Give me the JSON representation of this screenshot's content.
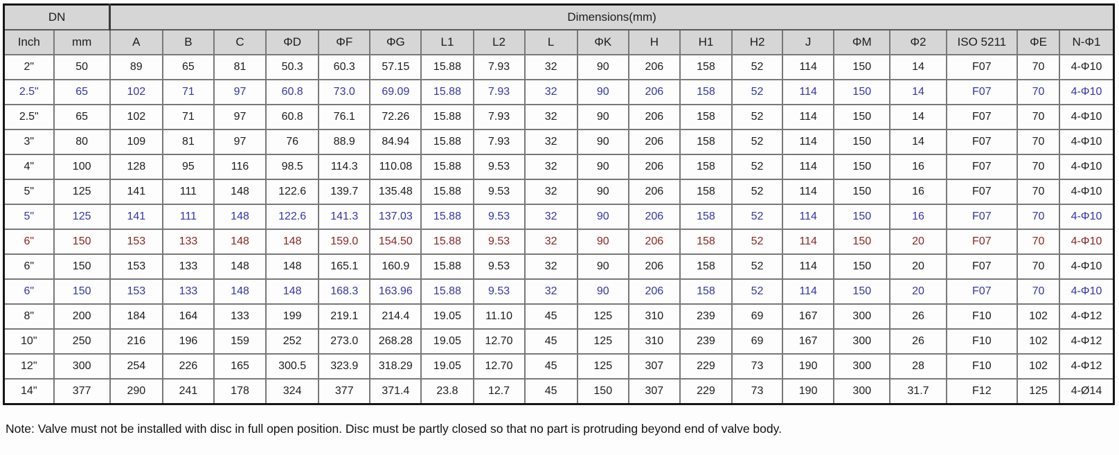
{
  "header": {
    "dn_label": "DN",
    "dimensions_label": "Dimensions(mm)"
  },
  "colors": {
    "black": "#1c1c1c",
    "blue": "#3434a8",
    "red": "#8b2424",
    "header_bg": "#d6d6d6"
  },
  "table": {
    "columns": [
      "Inch",
      "mm",
      "A",
      "B",
      "C",
      "ΦD",
      "ΦF",
      "ΦG",
      "L1",
      "L2",
      "L",
      "ΦK",
      "H",
      "H1",
      "H2",
      "J",
      "ΦM",
      "Φ2",
      "ISO 5211",
      "ΦE",
      "N-Φ1"
    ],
    "rows": [
      {
        "color": "black",
        "cells": [
          "2\"",
          "50",
          "89",
          "65",
          "81",
          "50.3",
          "60.3",
          "57.15",
          "15.88",
          "7.93",
          "32",
          "90",
          "206",
          "158",
          "52",
          "114",
          "150",
          "14",
          "F07",
          "70",
          "4-Φ10"
        ]
      },
      {
        "color": "blue",
        "cells": [
          "2.5\"",
          "65",
          "102",
          "71",
          "97",
          "60.8",
          "73.0",
          "69.09",
          "15.88",
          "7.93",
          "32",
          "90",
          "206",
          "158",
          "52",
          "114",
          "150",
          "14",
          "F07",
          "70",
          "4-Φ10"
        ]
      },
      {
        "color": "black",
        "cells": [
          "2.5\"",
          "65",
          "102",
          "71",
          "97",
          "60.8",
          "76.1",
          "72.26",
          "15.88",
          "7.93",
          "32",
          "90",
          "206",
          "158",
          "52",
          "114",
          "150",
          "14",
          "F07",
          "70",
          "4-Φ10"
        ]
      },
      {
        "color": "black",
        "cells": [
          "3\"",
          "80",
          "109",
          "81",
          "97",
          "76",
          "88.9",
          "84.94",
          "15.88",
          "7.93",
          "32",
          "90",
          "206",
          "158",
          "52",
          "114",
          "150",
          "14",
          "F07",
          "70",
          "4-Φ10"
        ]
      },
      {
        "color": "black",
        "cells": [
          "4\"",
          "100",
          "128",
          "95",
          "116",
          "98.5",
          "114.3",
          "110.08",
          "15.88",
          "9.53",
          "32",
          "90",
          "206",
          "158",
          "52",
          "114",
          "150",
          "16",
          "F07",
          "70",
          "4-Φ10"
        ]
      },
      {
        "color": "black",
        "cells": [
          "5\"",
          "125",
          "141",
          "111",
          "148",
          "122.6",
          "139.7",
          "135.48",
          "15.88",
          "9.53",
          "32",
          "90",
          "206",
          "158",
          "52",
          "114",
          "150",
          "16",
          "F07",
          "70",
          "4-Φ10"
        ]
      },
      {
        "color": "blue",
        "cells": [
          "5\"",
          "125",
          "141",
          "111",
          "148",
          "122.6",
          "141.3",
          "137.03",
          "15.88",
          "9.53",
          "32",
          "90",
          "206",
          "158",
          "52",
          "114",
          "150",
          "16",
          "F07",
          "70",
          "4-Φ10"
        ]
      },
      {
        "color": "red",
        "cells": [
          "6\"",
          "150",
          "153",
          "133",
          "148",
          "148",
          "159.0",
          "154.50",
          "15.88",
          "9.53",
          "32",
          "90",
          "206",
          "158",
          "52",
          "114",
          "150",
          "20",
          "F07",
          "70",
          "4-Φ10"
        ]
      },
      {
        "color": "black",
        "cells": [
          "6\"",
          "150",
          "153",
          "133",
          "148",
          "148",
          "165.1",
          "160.9",
          "15.88",
          "9.53",
          "32",
          "90",
          "206",
          "158",
          "52",
          "114",
          "150",
          "20",
          "F07",
          "70",
          "4-Φ10"
        ]
      },
      {
        "color": "blue",
        "cells": [
          "6\"",
          "150",
          "153",
          "133",
          "148",
          "148",
          "168.3",
          "163.96",
          "15.88",
          "9.53",
          "32",
          "90",
          "206",
          "158",
          "52",
          "114",
          "150",
          "20",
          "F07",
          "70",
          "4-Φ10"
        ]
      },
      {
        "color": "black",
        "cells": [
          "8\"",
          "200",
          "184",
          "164",
          "133",
          "199",
          "219.1",
          "214.4",
          "19.05",
          "11.10",
          "45",
          "125",
          "310",
          "239",
          "69",
          "167",
          "300",
          "26",
          "F10",
          "102",
          "4-Φ12"
        ]
      },
      {
        "color": "black",
        "cells": [
          "10\"",
          "250",
          "216",
          "196",
          "159",
          "252",
          "273.0",
          "268.28",
          "19.05",
          "12.70",
          "45",
          "125",
          "310",
          "239",
          "69",
          "167",
          "300",
          "26",
          "F10",
          "102",
          "4-Φ12"
        ]
      },
      {
        "color": "black",
        "cells": [
          "12\"",
          "300",
          "254",
          "226",
          "165",
          "300.5",
          "323.9",
          "318.29",
          "19.05",
          "12.70",
          "45",
          "125",
          "307",
          "229",
          "73",
          "190",
          "300",
          "28",
          "F10",
          "102",
          "4-Φ12"
        ]
      },
      {
        "color": "black",
        "cells": [
          "14\"",
          "377",
          "290",
          "241",
          "178",
          "324",
          "377",
          "371.4",
          "23.8",
          "12.7",
          "45",
          "150",
          "307",
          "229",
          "73",
          "190",
          "300",
          "31.7",
          "F12",
          "125",
          "4-Ø14"
        ]
      }
    ]
  },
  "note": "Note: Valve must not be installed with disc in full open position. Disc must be partly closed so that no part is protruding beyond end of valve body."
}
